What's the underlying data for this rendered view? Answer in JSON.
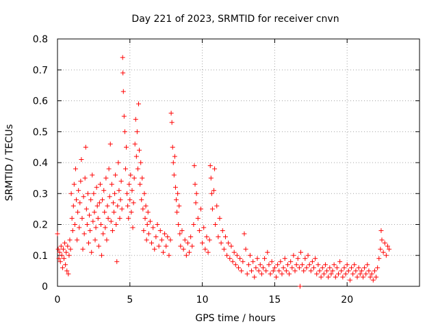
{
  "chart_data": {
    "type": "scatter",
    "title": "Day 221 of 2023, SRMTID for receiver cnvn",
    "xlabel": "GPS time / hours",
    "ylabel": "SRMTID / TECUs",
    "xlim": [
      0,
      25
    ],
    "ylim": [
      0,
      0.8
    ],
    "x_ticks": [
      0,
      5,
      10,
      15,
      20
    ],
    "x_tick_labels": [
      "0",
      "5",
      "10",
      "15",
      "20"
    ],
    "y_ticks": [
      0,
      0.1,
      0.2,
      0.3,
      0.4,
      0.5,
      0.6,
      0.7,
      0.8
    ],
    "y_tick_labels": [
      "0",
      "0.1",
      "0.2",
      "0.3",
      "0.4",
      "0.5",
      "0.6",
      "0.7",
      "0.8"
    ],
    "grid": true,
    "marker": "+",
    "marker_color": "#ff0000",
    "series": [
      {
        "name": "SRMTID",
        "points": [
          [
            0.0,
            0.17
          ],
          [
            0.05,
            0.12
          ],
          [
            0.1,
            0.09
          ],
          [
            0.15,
            0.11
          ],
          [
            0.2,
            0.08
          ],
          [
            0.25,
            0.13
          ],
          [
            0.3,
            0.1
          ],
          [
            0.35,
            0.06
          ],
          [
            0.4,
            0.12
          ],
          [
            0.45,
            0.09
          ],
          [
            0.5,
            0.14
          ],
          [
            0.55,
            0.07
          ],
          [
            0.6,
            0.11
          ],
          [
            0.65,
            0.05
          ],
          [
            0.7,
            0.13
          ],
          [
            0.75,
            0.04
          ],
          [
            0.8,
            0.1
          ],
          [
            0.85,
            0.15
          ],
          [
            0.9,
            0.12
          ],
          [
            0.95,
            0.3
          ],
          [
            1.0,
            0.22
          ],
          [
            1.05,
            0.18
          ],
          [
            1.1,
            0.26
          ],
          [
            1.15,
            0.33
          ],
          [
            1.2,
            0.2
          ],
          [
            1.25,
            0.38
          ],
          [
            1.3,
            0.28
          ],
          [
            1.35,
            0.15
          ],
          [
            1.4,
            0.24
          ],
          [
            1.45,
            0.31
          ],
          [
            1.5,
            0.19
          ],
          [
            1.55,
            0.27
          ],
          [
            1.6,
            0.34
          ],
          [
            1.65,
            0.41
          ],
          [
            1.7,
            0.22
          ],
          [
            1.75,
            0.12
          ],
          [
            1.8,
            0.29
          ],
          [
            1.85,
            0.17
          ],
          [
            1.9,
            0.35
          ],
          [
            1.95,
            0.45
          ],
          [
            2.0,
            0.25
          ],
          [
            2.05,
            0.2
          ],
          [
            2.1,
            0.3
          ],
          [
            2.15,
            0.14
          ],
          [
            2.2,
            0.23
          ],
          [
            2.25,
            0.18
          ],
          [
            2.3,
            0.28
          ],
          [
            2.35,
            0.11
          ],
          [
            2.4,
            0.36
          ],
          [
            2.45,
            0.21
          ],
          [
            2.5,
            0.3
          ],
          [
            2.55,
            0.24
          ],
          [
            2.6,
            0.15
          ],
          [
            2.65,
            0.19
          ],
          [
            2.7,
            0.32
          ],
          [
            2.75,
            0.26
          ],
          [
            2.8,
            0.22
          ],
          [
            2.85,
            0.13
          ],
          [
            2.9,
            0.27
          ],
          [
            2.95,
            0.33
          ],
          [
            3.0,
            0.2
          ],
          [
            3.05,
            0.1
          ],
          [
            3.1,
            0.28
          ],
          [
            3.15,
            0.17
          ],
          [
            3.2,
            0.31
          ],
          [
            3.25,
            0.24
          ],
          [
            3.3,
            0.19
          ],
          [
            3.35,
            0.35
          ],
          [
            3.4,
            0.15
          ],
          [
            3.45,
            0.26
          ],
          [
            3.5,
            0.22
          ],
          [
            3.55,
            0.38
          ],
          [
            3.6,
            0.29
          ],
          [
            3.65,
            0.46
          ],
          [
            3.7,
            0.21
          ],
          [
            3.75,
            0.33
          ],
          [
            3.8,
            0.18
          ],
          [
            3.85,
            0.27
          ],
          [
            3.9,
            0.24
          ],
          [
            3.95,
            0.3
          ],
          [
            4.0,
            0.36
          ],
          [
            4.05,
            0.2
          ],
          [
            4.1,
            0.08
          ],
          [
            4.15,
            0.26
          ],
          [
            4.2,
            0.4
          ],
          [
            4.25,
            0.31
          ],
          [
            4.3,
            0.22
          ],
          [
            4.35,
            0.28
          ],
          [
            4.4,
            0.34
          ],
          [
            4.45,
            0.25
          ],
          [
            4.5,
            0.74
          ],
          [
            4.52,
            0.69
          ],
          [
            4.55,
            0.63
          ],
          [
            4.6,
            0.55
          ],
          [
            4.65,
            0.5
          ],
          [
            4.7,
            0.38
          ],
          [
            4.75,
            0.45
          ],
          [
            4.8,
            0.3
          ],
          [
            4.85,
            0.26
          ],
          [
            4.9,
            0.22
          ],
          [
            4.95,
            0.33
          ],
          [
            5.0,
            0.28
          ],
          [
            5.05,
            0.36
          ],
          [
            5.1,
            0.24
          ],
          [
            5.15,
            0.31
          ],
          [
            5.2,
            0.19
          ],
          [
            5.25,
            0.27
          ],
          [
            5.3,
            0.35
          ],
          [
            5.35,
            0.46
          ],
          [
            5.4,
            0.54
          ],
          [
            5.45,
            0.42
          ],
          [
            5.5,
            0.5
          ],
          [
            5.55,
            0.38
          ],
          [
            5.6,
            0.59
          ],
          [
            5.65,
            0.44
          ],
          [
            5.7,
            0.33
          ],
          [
            5.75,
            0.4
          ],
          [
            5.8,
            0.28
          ],
          [
            5.85,
            0.35
          ],
          [
            5.9,
            0.25
          ],
          [
            5.95,
            0.18
          ],
          [
            6.0,
            0.3
          ],
          [
            6.05,
            0.22
          ],
          [
            6.1,
            0.26
          ],
          [
            6.15,
            0.15
          ],
          [
            6.2,
            0.2
          ],
          [
            6.25,
            0.24
          ],
          [
            6.3,
            0.17
          ],
          [
            6.4,
            0.21
          ],
          [
            6.5,
            0.14
          ],
          [
            6.6,
            0.19
          ],
          [
            6.7,
            0.12
          ],
          [
            6.8,
            0.16
          ],
          [
            6.9,
            0.2
          ],
          [
            7.0,
            0.13
          ],
          [
            7.1,
            0.18
          ],
          [
            7.2,
            0.15
          ],
          [
            7.3,
            0.11
          ],
          [
            7.4,
            0.17
          ],
          [
            7.5,
            0.13
          ],
          [
            7.6,
            0.16
          ],
          [
            7.7,
            0.1
          ],
          [
            7.8,
            0.15
          ],
          [
            7.85,
            0.56
          ],
          [
            7.9,
            0.53
          ],
          [
            7.95,
            0.45
          ],
          [
            8.0,
            0.4
          ],
          [
            8.05,
            0.36
          ],
          [
            8.1,
            0.42
          ],
          [
            8.15,
            0.32
          ],
          [
            8.2,
            0.28
          ],
          [
            8.25,
            0.24
          ],
          [
            8.3,
            0.3
          ],
          [
            8.35,
            0.2
          ],
          [
            8.4,
            0.26
          ],
          [
            8.45,
            0.17
          ],
          [
            8.5,
            0.13
          ],
          [
            8.6,
            0.18
          ],
          [
            8.7,
            0.12
          ],
          [
            8.8,
            0.15
          ],
          [
            8.9,
            0.1
          ],
          [
            9.0,
            0.14
          ],
          [
            9.1,
            0.11
          ],
          [
            9.2,
            0.16
          ],
          [
            9.3,
            0.13
          ],
          [
            9.4,
            0.2
          ],
          [
            9.45,
            0.39
          ],
          [
            9.5,
            0.33
          ],
          [
            9.55,
            0.27
          ],
          [
            9.6,
            0.3
          ],
          [
            9.7,
            0.22
          ],
          [
            9.8,
            0.18
          ],
          [
            9.9,
            0.25
          ],
          [
            10.0,
            0.14
          ],
          [
            10.1,
            0.19
          ],
          [
            10.2,
            0.12
          ],
          [
            10.3,
            0.16
          ],
          [
            10.4,
            0.11
          ],
          [
            10.5,
            0.15
          ],
          [
            10.55,
            0.39
          ],
          [
            10.6,
            0.35
          ],
          [
            10.65,
            0.3
          ],
          [
            10.7,
            0.25
          ],
          [
            10.8,
            0.31
          ],
          [
            10.85,
            0.38
          ],
          [
            10.9,
            0.2
          ],
          [
            11.0,
            0.26
          ],
          [
            11.1,
            0.16
          ],
          [
            11.2,
            0.22
          ],
          [
            11.3,
            0.14
          ],
          [
            11.4,
            0.18
          ],
          [
            11.5,
            0.12
          ],
          [
            11.6,
            0.16
          ],
          [
            11.7,
            0.1
          ],
          [
            11.8,
            0.14
          ],
          [
            11.9,
            0.09
          ],
          [
            12.0,
            0.13
          ],
          [
            12.1,
            0.08
          ],
          [
            12.2,
            0.11
          ],
          [
            12.3,
            0.07
          ],
          [
            12.4,
            0.1
          ],
          [
            12.5,
            0.06
          ],
          [
            12.6,
            0.09
          ],
          [
            12.7,
            0.05
          ],
          [
            12.8,
            0.08
          ],
          [
            12.9,
            0.17
          ],
          [
            13.0,
            0.12
          ],
          [
            13.1,
            0.04
          ],
          [
            13.2,
            0.07
          ],
          [
            13.3,
            0.1
          ],
          [
            13.4,
            0.05
          ],
          [
            13.5,
            0.08
          ],
          [
            13.6,
            0.03
          ],
          [
            13.7,
            0.06
          ],
          [
            13.8,
            0.09
          ],
          [
            13.9,
            0.05
          ],
          [
            14.0,
            0.07
          ],
          [
            14.1,
            0.04
          ],
          [
            14.2,
            0.06
          ],
          [
            14.3,
            0.09
          ],
          [
            14.4,
            0.05
          ],
          [
            14.5,
            0.11
          ],
          [
            14.6,
            0.07
          ],
          [
            14.7,
            0.04
          ],
          [
            14.8,
            0.08
          ],
          [
            14.9,
            0.05
          ],
          [
            15.0,
            0.06
          ],
          [
            15.1,
            0.03
          ],
          [
            15.2,
            0.07
          ],
          [
            15.3,
            0.05
          ],
          [
            15.4,
            0.08
          ],
          [
            15.5,
            0.04
          ],
          [
            15.6,
            0.06
          ],
          [
            15.7,
            0.09
          ],
          [
            15.8,
            0.05
          ],
          [
            15.9,
            0.07
          ],
          [
            16.0,
            0.04
          ],
          [
            16.1,
            0.08
          ],
          [
            16.2,
            0.06
          ],
          [
            16.3,
            0.1
          ],
          [
            16.4,
            0.05
          ],
          [
            16.5,
            0.07
          ],
          [
            16.6,
            0.09
          ],
          [
            16.7,
            0.06
          ],
          [
            16.75,
            0.0
          ],
          [
            16.8,
            0.11
          ],
          [
            16.9,
            0.07
          ],
          [
            17.0,
            0.05
          ],
          [
            17.1,
            0.09
          ],
          [
            17.2,
            0.06
          ],
          [
            17.3,
            0.1
          ],
          [
            17.4,
            0.07
          ],
          [
            17.5,
            0.05
          ],
          [
            17.6,
            0.08
          ],
          [
            17.7,
            0.06
          ],
          [
            17.8,
            0.09
          ],
          [
            17.9,
            0.04
          ],
          [
            18.0,
            0.07
          ],
          [
            18.1,
            0.05
          ],
          [
            18.2,
            0.03
          ],
          [
            18.3,
            0.06
          ],
          [
            18.4,
            0.04
          ],
          [
            18.5,
            0.07
          ],
          [
            18.6,
            0.05
          ],
          [
            18.7,
            0.03
          ],
          [
            18.8,
            0.06
          ],
          [
            18.9,
            0.04
          ],
          [
            19.0,
            0.05
          ],
          [
            19.1,
            0.07
          ],
          [
            19.2,
            0.03
          ],
          [
            19.3,
            0.06
          ],
          [
            19.4,
            0.04
          ],
          [
            19.5,
            0.08
          ],
          [
            19.6,
            0.05
          ],
          [
            19.7,
            0.03
          ],
          [
            19.8,
            0.06
          ],
          [
            19.9,
            0.04
          ],
          [
            20.0,
            0.07
          ],
          [
            20.1,
            0.05
          ],
          [
            20.2,
            0.02
          ],
          [
            20.3,
            0.06
          ],
          [
            20.4,
            0.04
          ],
          [
            20.5,
            0.07
          ],
          [
            20.6,
            0.05
          ],
          [
            20.7,
            0.03
          ],
          [
            20.8,
            0.06
          ],
          [
            20.9,
            0.04
          ],
          [
            21.0,
            0.05
          ],
          [
            21.1,
            0.03
          ],
          [
            21.2,
            0.06
          ],
          [
            21.3,
            0.04
          ],
          [
            21.4,
            0.07
          ],
          [
            21.5,
            0.05
          ],
          [
            21.6,
            0.03
          ],
          [
            21.7,
            0.04
          ],
          [
            21.8,
            0.02
          ],
          [
            21.9,
            0.05
          ],
          [
            22.0,
            0.03
          ],
          [
            22.1,
            0.06
          ],
          [
            22.2,
            0.09
          ],
          [
            22.3,
            0.12
          ],
          [
            22.35,
            0.18
          ],
          [
            22.4,
            0.15
          ],
          [
            22.5,
            0.11
          ],
          [
            22.6,
            0.14
          ],
          [
            22.7,
            0.1
          ],
          [
            22.8,
            0.13
          ],
          [
            22.9,
            0.12
          ]
        ]
      }
    ]
  }
}
